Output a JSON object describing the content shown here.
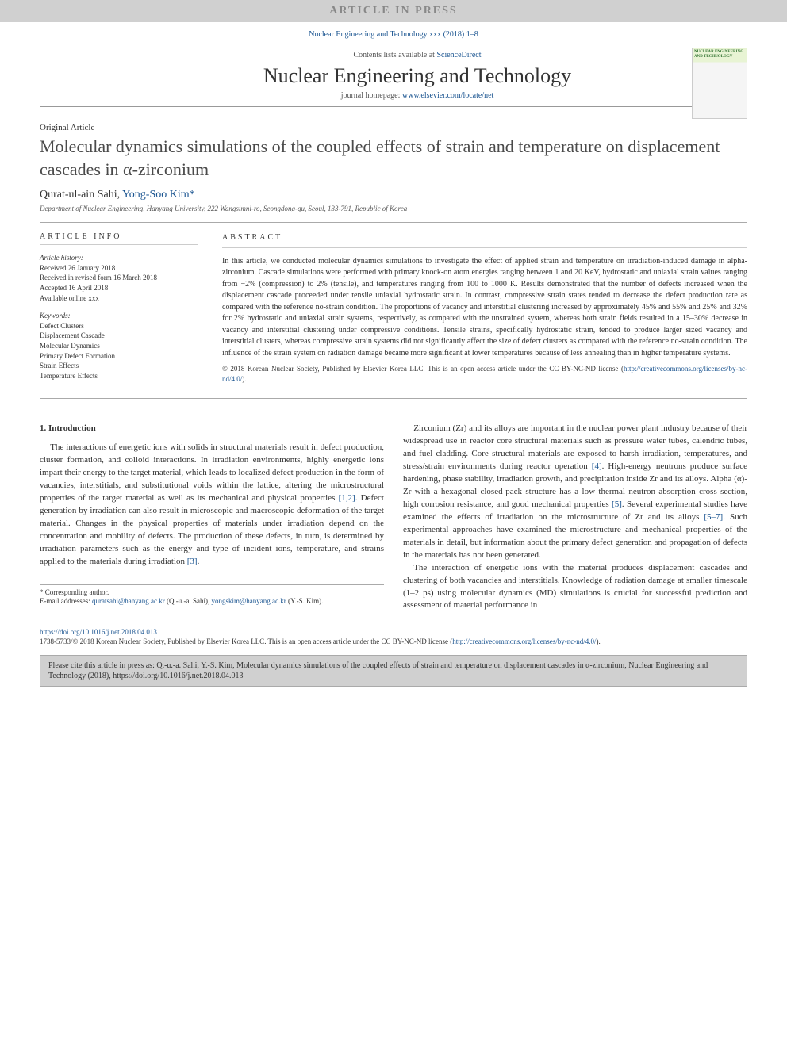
{
  "banner": "ARTICLE IN PRESS",
  "journal_ref": "Nuclear Engineering and Technology xxx (2018) 1–8",
  "header": {
    "contents_prefix": "Contents lists available at ",
    "contents_link": "ScienceDirect",
    "journal_name": "Nuclear Engineering and Technology",
    "homepage_prefix": "journal homepage: ",
    "homepage_link": "www.elsevier.com/locate/net",
    "cover_title": "NUCLEAR ENGINEERING AND TECHNOLOGY"
  },
  "article": {
    "type": "Original Article",
    "title": "Molecular dynamics simulations of the coupled effects of strain and temperature on displacement cascades in α-zirconium",
    "author1": "Qurat-ul-ain Sahi, ",
    "author2": "Yong-Soo Kim",
    "corresp_marker": "*",
    "affiliation": "Department of Nuclear Engineering, Hanyang University, 222 Wangsimni-ro, Seongdong-gu, Seoul, 133-791, Republic of Korea"
  },
  "info": {
    "label": "ARTICLE INFO",
    "history_label": "Article history:",
    "received": "Received 26 January 2018",
    "revised": "Received in revised form 16 March 2018",
    "accepted": "Accepted 16 April 2018",
    "online": "Available online xxx",
    "keywords_label": "Keywords:",
    "kw1": "Defect Clusters",
    "kw2": "Displacement Cascade",
    "kw3": "Molecular Dynamics",
    "kw4": "Primary Defect Formation",
    "kw5": "Strain Effects",
    "kw6": "Temperature Effects"
  },
  "abstract": {
    "label": "ABSTRACT",
    "text": "In this article, we conducted molecular dynamics simulations to investigate the effect of applied strain and temperature on irradiation-induced damage in alpha-zirconium. Cascade simulations were performed with primary knock-on atom energies ranging between 1 and 20 KeV, hydrostatic and uniaxial strain values ranging from −2% (compression) to 2% (tensile), and temperatures ranging from 100 to 1000 K. Results demonstrated that the number of defects increased when the displacement cascade proceeded under tensile uniaxial hydrostatic strain. In contrast, compressive strain states tended to decrease the defect production rate as compared with the reference no-strain condition. The proportions of vacancy and interstitial clustering increased by approximately 45% and 55% and 25% and 32% for 2% hydrostatic and uniaxial strain systems, respectively, as compared with the unstrained system, whereas both strain fields resulted in a 15–30% decrease in vacancy and interstitial clustering under compressive conditions. Tensile strains, specifically hydrostatic strain, tended to produce larger sized vacancy and interstitial clusters, whereas compressive strain systems did not significantly affect the size of defect clusters as compared with the reference no-strain condition. The influence of the strain system on radiation damage became more significant at lower temperatures because of less annealing than in higher temperature systems.",
    "copyright": "© 2018 Korean Nuclear Society, Published by Elsevier Korea LLC. This is an open access article under the CC BY-NC-ND license (",
    "copyright_link": "http://creativecommons.org/licenses/by-nc-nd/4.0/",
    "copyright_close": ")."
  },
  "body": {
    "section1": "1. Introduction",
    "col1_p1": "The interactions of energetic ions with solids in structural materials result in defect production, cluster formation, and colloid interactions. In irradiation environments, highly energetic ions impart their energy to the target material, which leads to localized defect production in the form of vacancies, interstitials, and substitutional voids within the lattice, altering the microstructural properties of the target material as well as its mechanical and physical properties ",
    "col1_ref1": "[1,2]",
    "col1_p1b": ". Defect generation by irradiation can also result in microscopic and macroscopic deformation of the target material. Changes in the physical properties of materials under irradiation depend on the concentration and mobility of defects. The production of these defects, in turn, is determined by irradiation parameters such as the energy and type of incident ions, temperature, and strains applied to the materials during irradiation ",
    "col1_ref2": "[3]",
    "col1_p1c": ".",
    "col2_p1": "Zirconium (Zr) and its alloys are important in the nuclear power plant industry because of their widespread use in reactor core structural materials such as pressure water tubes, calendric tubes, and fuel cladding. Core structural materials are exposed to harsh irradiation, temperatures, and stress/strain environments during reactor operation ",
    "col2_ref1": "[4]",
    "col2_p1b": ". High-energy neutrons produce surface hardening, phase stability, irradiation growth, and precipitation inside Zr and its alloys. Alpha (α)-Zr with a hexagonal closed-pack structure has a low thermal neutron absorption cross section, high corrosion resistance, and good mechanical properties ",
    "col2_ref2": "[5]",
    "col2_p1c": ". Several experimental studies have examined the effects of irradiation on the microstructure of Zr and its alloys ",
    "col2_ref3": "[5–7]",
    "col2_p1d": ". Such experimental approaches have examined the microstructure and mechanical properties of the materials in detail, but information about the primary defect generation and propagation of defects in the materials has not been generated.",
    "col2_p2": "The interaction of energetic ions with the material produces displacement cascades and clustering of both vacancies and interstitials. Knowledge of radiation damage at smaller timescale (1–2 ps) using molecular dynamics (MD) simulations is crucial for successful prediction and assessment of material performance in"
  },
  "footnotes": {
    "corresp_label": "* Corresponding author.",
    "email_label": "E-mail addresses: ",
    "email1": "quratsahi@hanyang.ac.kr",
    "email1_name": " (Q.-u.-a. Sahi), ",
    "email2": "yongskim@hanyang.ac.kr",
    "email2_name": " (Y.-S. Kim)."
  },
  "doi": {
    "link": "https://doi.org/10.1016/j.net.2018.04.013",
    "issn_text": "1738-5733/© 2018 Korean Nuclear Society, Published by Elsevier Korea LLC. This is an open access article under the CC BY-NC-ND license (",
    "issn_link": "http://creativecommons.org/licenses/by-nc-nd/4.0/",
    "issn_close": ")."
  },
  "citebox": "Please cite this article in press as: Q.-u.-a. Sahi, Y.-S. Kim, Molecular dynamics simulations of the coupled effects of strain and temperature on displacement cascades in α-zirconium, Nuclear Engineering and Technology (2018), https://doi.org/10.1016/j.net.2018.04.013",
  "colors": {
    "link": "#1a5490",
    "banner_bg": "#d0d0d0",
    "text": "#333333"
  }
}
